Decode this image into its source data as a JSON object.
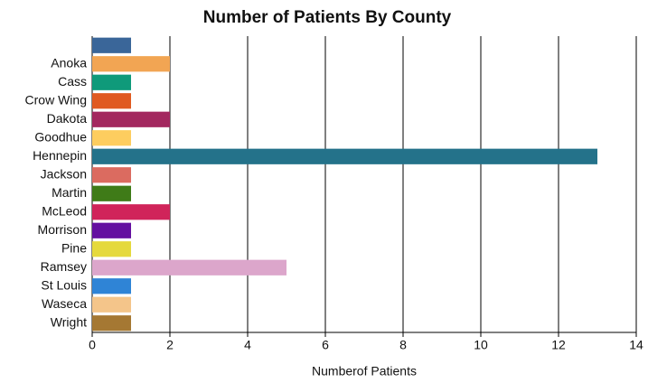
{
  "chart_data": {
    "type": "hbar",
    "title": "Number of Patients By County",
    "x_label": "Numberof Patients",
    "categories": [
      null,
      "Anoka",
      "Cass",
      "Crow Wing",
      "Dakota",
      "Goodhue",
      "Hennepin",
      "Jackson",
      "Martin",
      "McLeod",
      "Morrison",
      "Pine",
      "Ramsey",
      "St Louis",
      "Waseca",
      "Wright"
    ],
    "values": [
      1,
      2,
      1,
      1,
      2,
      1,
      13,
      1,
      1,
      2,
      1,
      1,
      5,
      1,
      1,
      1
    ],
    "colors": [
      "#3a6699",
      "#f2a553",
      "#0f9a7a",
      "#e05a21",
      "#a3285f",
      "#fdcd5f",
      "#24728a",
      "#db6b60",
      "#3f7b18",
      "#d0245a",
      "#6410a0",
      "#e5d93d",
      "#dca6cb",
      "#2f84d6",
      "#f4c58a",
      "#a57833"
    ],
    "xlim": [
      0,
      14
    ],
    "xticks": [
      0,
      2,
      4,
      6,
      8,
      10,
      12,
      14
    ],
    "grid": true
  }
}
